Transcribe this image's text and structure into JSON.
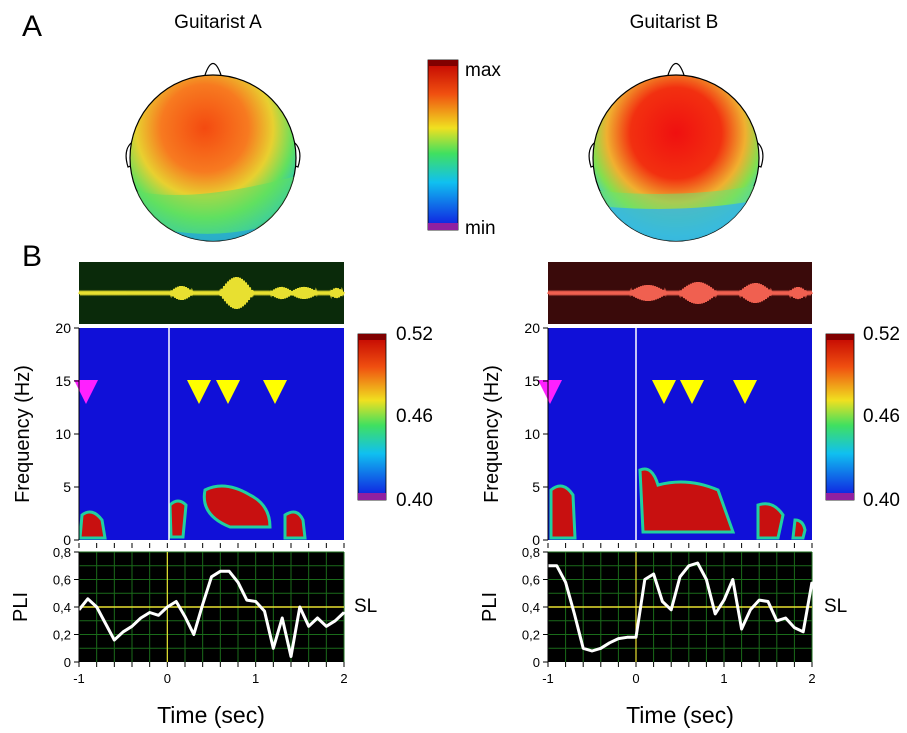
{
  "panel_a": {
    "letter": "A",
    "titles": [
      "Guitarist A",
      "Guitarist B"
    ],
    "colorbar": {
      "max_label": "max",
      "min_label": "min"
    }
  },
  "panel_b": {
    "letter": "B",
    "freq_axis": {
      "label": "Frequency (Hz)",
      "ticks": [
        "0",
        "5",
        "10",
        "15",
        "20"
      ]
    },
    "pli_axis": {
      "label": "PLI",
      "ticks": [
        "0",
        "0,2",
        "0,4",
        "0,6",
        "0,8"
      ]
    },
    "time_axis": {
      "label": "Time (sec)",
      "ticks": [
        "-1",
        "0",
        "1",
        "2"
      ]
    },
    "sl_label": "SL",
    "colorbar": {
      "max": "0.52",
      "mid": "0.46",
      "min": "0.40"
    },
    "colors": {
      "spectrogram_bg": "#1010d8",
      "trace_a": "#e8e030",
      "trace_b": "#f06050",
      "pli_bg": "#000000",
      "pli_grid": "#1a6b1a",
      "sl_line": "#e8e030",
      "magenta_marker": "#ff20ff",
      "yellow_marker": "#ffff00"
    }
  },
  "chart_data": [
    {
      "type": "line",
      "title": "Guitarist A",
      "xlabel": "Time (sec)",
      "ylabel": "PLI",
      "xlim": [
        -1,
        2
      ],
      "ylim": [
        0,
        0.8
      ],
      "series": [
        {
          "name": "",
          "x": [
            -1,
            -0.9,
            -0.8,
            -0.7,
            -0.6,
            -0.5,
            -0.4,
            -0.3,
            -0.2,
            -0.1,
            0,
            0.1,
            0.2,
            0.3,
            0.4,
            0.5,
            0.6,
            0.7,
            0.8,
            0.9,
            1,
            1.1,
            1.2,
            1.3,
            1.4,
            1.5,
            1.6,
            1.7,
            1.8,
            1.9,
            2
          ],
          "y": [
            0.38,
            0.46,
            0.4,
            0.28,
            0.16,
            0.22,
            0.26,
            0.32,
            0.36,
            0.34,
            0.4,
            0.44,
            0.33,
            0.2,
            0.42,
            0.62,
            0.66,
            0.66,
            0.58,
            0.45,
            0.44,
            0.37,
            0.1,
            0.32,
            0.04,
            0.4,
            0.26,
            0.32,
            0.26,
            0.3,
            0.36
          ]
        }
      ],
      "sl": 0.4,
      "markers_sec": [
        -0.95,
        0.35,
        0.65,
        1.2
      ]
    },
    {
      "type": "line",
      "title": "Guitarist B",
      "xlabel": "Time (sec)",
      "ylabel": "PLI",
      "xlim": [
        -1,
        2
      ],
      "ylim": [
        0,
        0.8
      ],
      "series": [
        {
          "name": "",
          "x": [
            -1,
            -0.9,
            -0.8,
            -0.7,
            -0.6,
            -0.5,
            -0.4,
            -0.3,
            -0.2,
            -0.1,
            0,
            0.1,
            0.2,
            0.3,
            0.4,
            0.5,
            0.6,
            0.7,
            0.8,
            0.9,
            1,
            1.1,
            1.2,
            1.3,
            1.4,
            1.5,
            1.6,
            1.7,
            1.8,
            1.9,
            2
          ],
          "y": [
            0.7,
            0.7,
            0.58,
            0.35,
            0.1,
            0.08,
            0.1,
            0.14,
            0.17,
            0.18,
            0.18,
            0.6,
            0.64,
            0.44,
            0.38,
            0.62,
            0.7,
            0.72,
            0.6,
            0.35,
            0.45,
            0.6,
            0.24,
            0.38,
            0.45,
            0.44,
            0.3,
            0.32,
            0.25,
            0.22,
            0.58
          ]
        }
      ],
      "sl": 0.4,
      "markers_sec": [
        -0.95,
        0.3,
        0.6,
        1.2
      ]
    }
  ]
}
